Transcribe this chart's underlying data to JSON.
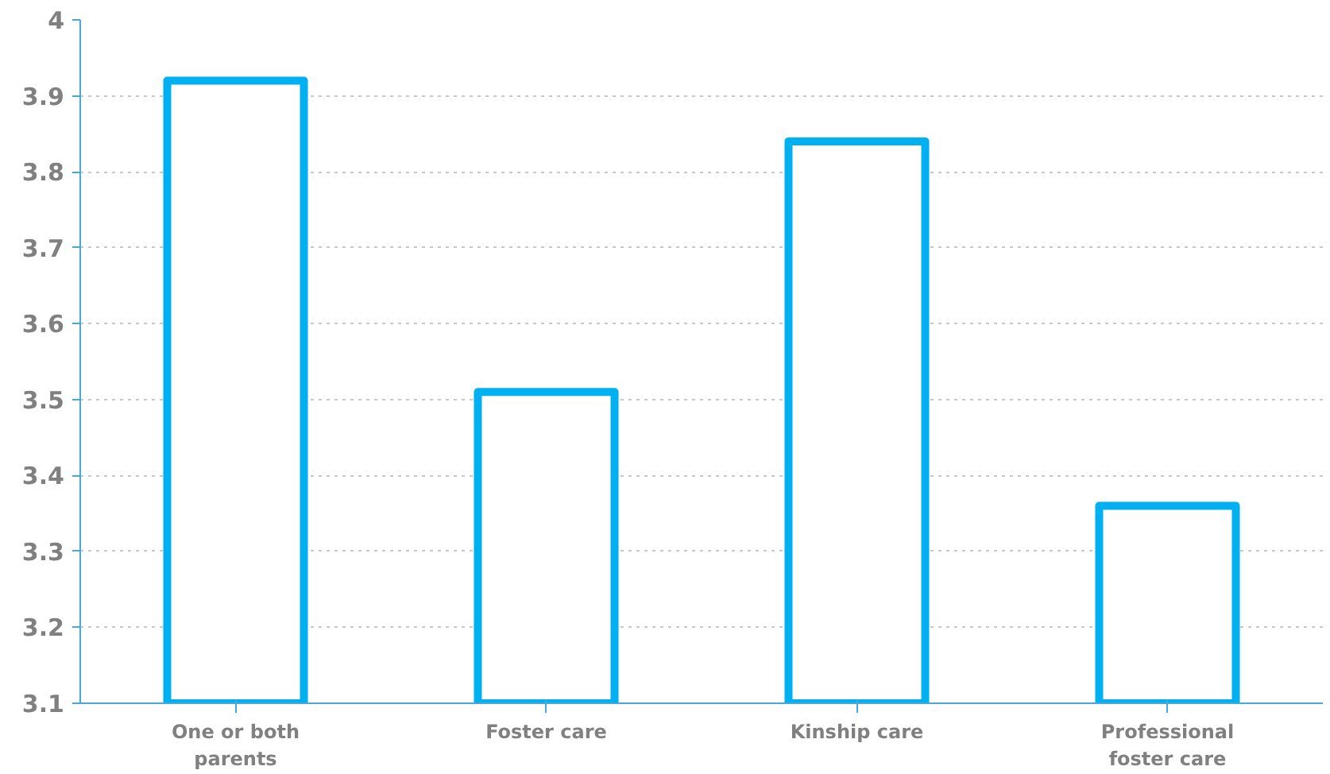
{
  "chart_data": {
    "type": "bar",
    "categories": [
      "One or both parents",
      "Foster care",
      "Kinship care",
      "Professional foster care"
    ],
    "values": [
      3.92,
      3.51,
      3.84,
      3.36
    ],
    "color": "#00b0f0",
    "ylim": [
      3.1,
      4
    ],
    "yticks": [
      3.1,
      3.2,
      3.3,
      3.4,
      3.5,
      3.6,
      3.7,
      3.8,
      3.9,
      4
    ],
    "grid": "y"
  }
}
